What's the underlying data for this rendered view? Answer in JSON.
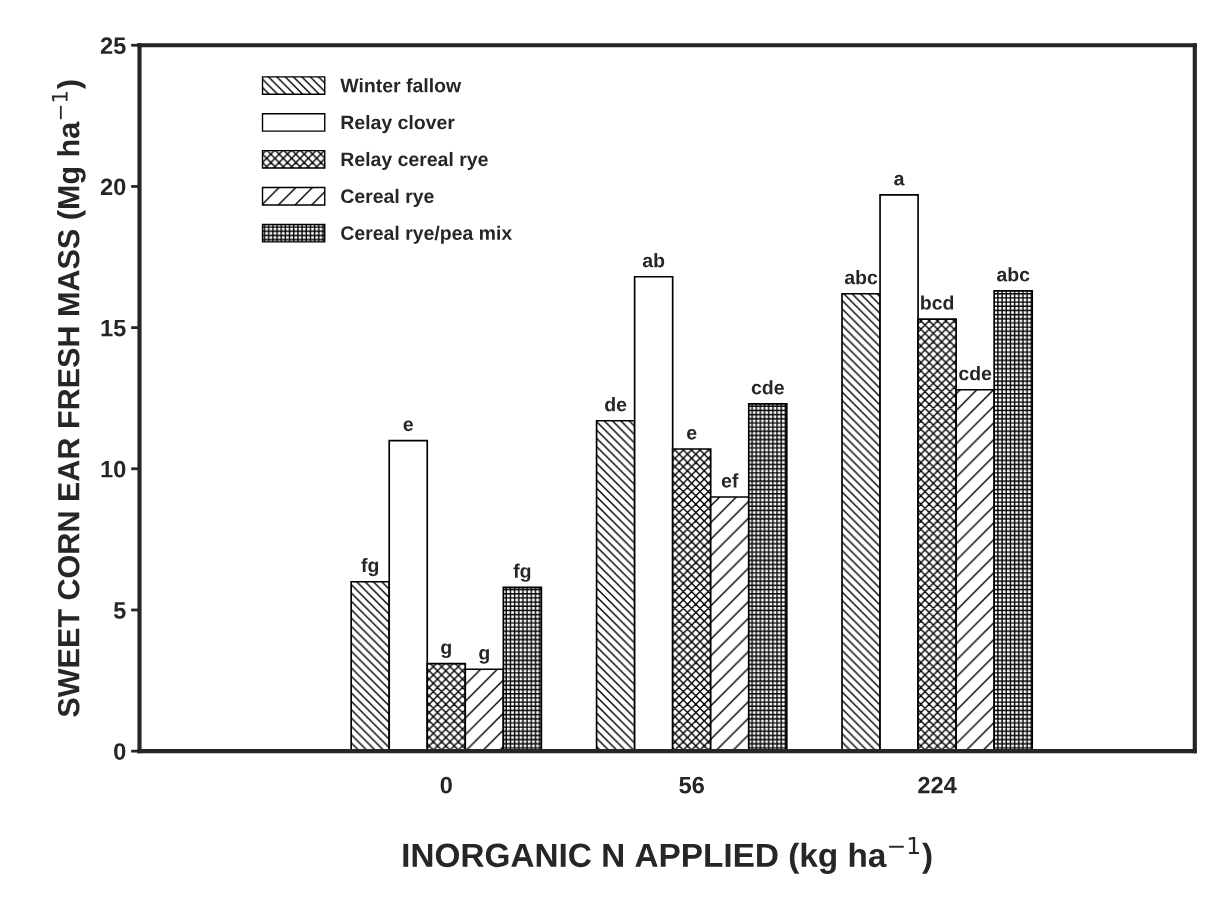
{
  "chart_data": {
    "type": "bar",
    "xlabel": "INORGANIC N APPLIED (kg ha$^{−1}$)",
    "ylabel": "SWEET CORN EAR FRESH MASS (Mg ha$^{−1}$)",
    "categories": [
      "0",
      "56",
      "224"
    ],
    "series": [
      {
        "name": "Winter fallow",
        "color": "#000000",
        "values": [
          6.0,
          11.7,
          16.2
        ],
        "value_labels": [
          "fg",
          "de",
          "abc"
        ]
      },
      {
        "name": "Relay clover",
        "color": "#ffffff",
        "values": [
          11.0,
          16.8,
          19.7
        ],
        "value_labels": [
          "e",
          "ab",
          "a"
        ]
      },
      {
        "name": "Relay cereal rye",
        "color": "#000000",
        "values": [
          3.1,
          10.7,
          15.3
        ],
        "value_labels": [
          "g",
          "e",
          "bcd"
        ]
      },
      {
        "name": "Cereal rye",
        "color": "#000000",
        "values": [
          2.9,
          9.0,
          12.8
        ],
        "value_labels": [
          "g",
          "ef",
          "cde"
        ]
      },
      {
        "name": "Cereal rye/pea mix",
        "color": "#000000",
        "values": [
          5.8,
          12.3,
          16.3
        ],
        "value_labels": [
          "fg",
          "cde",
          "abc"
        ]
      }
    ],
    "ylim": [
      0,
      25
    ],
    "yticks": [
      0,
      5,
      10,
      15,
      20,
      25
    ],
    "grid": false,
    "legend": "top left"
  }
}
